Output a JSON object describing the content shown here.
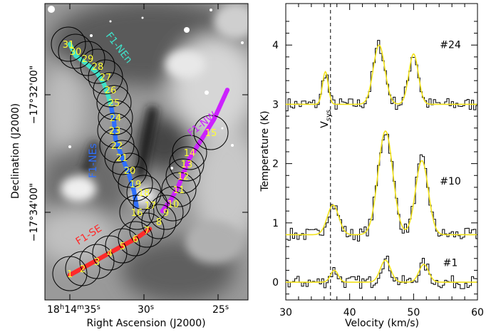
{
  "chart_data": [
    {
      "type": "image-map",
      "xlabel": "Right Ascension (J2000)",
      "ylabel": "Declination (J2000)",
      "x_ticks": [
        {
          "h": "18",
          "m": "14",
          "s": "35",
          "label": "18h14m35s"
        },
        {
          "s": "30",
          "label": "30s"
        },
        {
          "s": "25",
          "label": "25s"
        }
      ],
      "y_ticks": [
        {
          "label": "−17°32′00″",
          "text": "−17°32'00\""
        },
        {
          "label": "−17°34′00″",
          "text": "−17°34'00\""
        }
      ],
      "filaments": [
        {
          "name": "F1-NEn",
          "color": "#40e0c8"
        },
        {
          "name": "F1-NEs",
          "color": "#2f6fff"
        },
        {
          "name": "F1-NW",
          "color": "#cc22ff"
        },
        {
          "name": "F1-SE",
          "color": "#ff2a2a"
        }
      ],
      "circles": [
        "1",
        "2",
        "3",
        "4",
        "5",
        "6",
        "7",
        "8",
        "9",
        "10",
        "11",
        "12",
        "13",
        "14",
        "15",
        "16",
        "17",
        "18",
        "19",
        "20",
        "21",
        "22",
        "23",
        "24",
        "25",
        "26",
        "27",
        "28",
        "29",
        "30",
        "31"
      ]
    },
    {
      "type": "line",
      "xlabel": "Velocity (km/s)",
      "ylabel": "Temperature (K)",
      "xlim": [
        30,
        60
      ],
      "ylim": [
        -0.3,
        4.7
      ],
      "x_ticks": [
        30,
        40,
        50,
        60
      ],
      "y_ticks": [
        0,
        1,
        2,
        3,
        4
      ],
      "vsys": {
        "label": "V",
        "sub": "sys",
        "value": 37
      },
      "series": [
        {
          "name": "#24",
          "offset": 3.0,
          "components": [
            {
              "center": 36.2,
              "amp": 0.55,
              "sigma": 0.45
            },
            {
              "center": 44.6,
              "amp": 1.0,
              "sigma": 0.9
            },
            {
              "center": 50.0,
              "amp": 0.85,
              "sigma": 0.75
            }
          ]
        },
        {
          "name": "#10",
          "offset": 0.8,
          "components": [
            {
              "center": 37.4,
              "amp": 0.5,
              "sigma": 0.9
            },
            {
              "center": 45.6,
              "amp": 1.75,
              "sigma": 1.15
            },
            {
              "center": 51.3,
              "amp": 1.25,
              "sigma": 1.0
            }
          ]
        },
        {
          "name": "#1",
          "offset": 0.0,
          "components": [
            {
              "center": 37.6,
              "amp": 0.2,
              "sigma": 0.6
            },
            {
              "center": 45.6,
              "amp": 0.37,
              "sigma": 0.8
            },
            {
              "center": 51.6,
              "amp": 0.3,
              "sigma": 0.75
            }
          ]
        }
      ]
    }
  ]
}
